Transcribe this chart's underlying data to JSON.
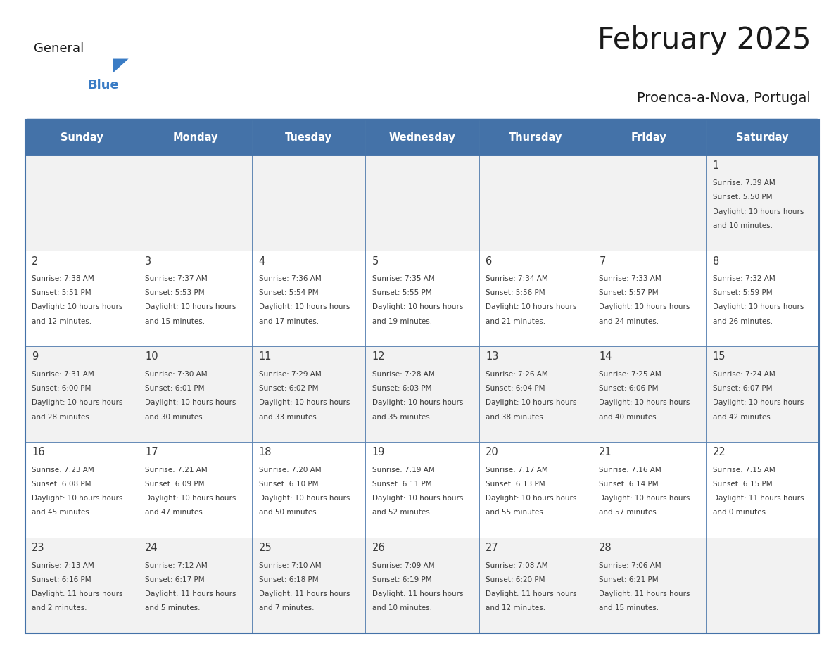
{
  "title": "February 2025",
  "subtitle": "Proenca-a-Nova, Portugal",
  "header_bg": "#4472A8",
  "header_text_color": "#FFFFFF",
  "cell_bg_odd": "#F2F2F2",
  "cell_bg_even": "#FFFFFF",
  "border_color": "#4472A8",
  "day_headers": [
    "Sunday",
    "Monday",
    "Tuesday",
    "Wednesday",
    "Thursday",
    "Friday",
    "Saturday"
  ],
  "title_color": "#1a1a1a",
  "subtitle_color": "#1a1a1a",
  "day_num_color": "#3a3a3a",
  "cell_text_color": "#3a3a3a",
  "logo_general_color": "#1a1a1a",
  "logo_blue_color": "#3a7cc5",
  "calendar_data": [
    [
      null,
      null,
      null,
      null,
      null,
      null,
      {
        "day": 1,
        "sunrise": "7:39 AM",
        "sunset": "5:50 PM",
        "daylight": "10 hours and 10 minutes."
      }
    ],
    [
      {
        "day": 2,
        "sunrise": "7:38 AM",
        "sunset": "5:51 PM",
        "daylight": "10 hours and 12 minutes."
      },
      {
        "day": 3,
        "sunrise": "7:37 AM",
        "sunset": "5:53 PM",
        "daylight": "10 hours and 15 minutes."
      },
      {
        "day": 4,
        "sunrise": "7:36 AM",
        "sunset": "5:54 PM",
        "daylight": "10 hours and 17 minutes."
      },
      {
        "day": 5,
        "sunrise": "7:35 AM",
        "sunset": "5:55 PM",
        "daylight": "10 hours and 19 minutes."
      },
      {
        "day": 6,
        "sunrise": "7:34 AM",
        "sunset": "5:56 PM",
        "daylight": "10 hours and 21 minutes."
      },
      {
        "day": 7,
        "sunrise": "7:33 AM",
        "sunset": "5:57 PM",
        "daylight": "10 hours and 24 minutes."
      },
      {
        "day": 8,
        "sunrise": "7:32 AM",
        "sunset": "5:59 PM",
        "daylight": "10 hours and 26 minutes."
      }
    ],
    [
      {
        "day": 9,
        "sunrise": "7:31 AM",
        "sunset": "6:00 PM",
        "daylight": "10 hours and 28 minutes."
      },
      {
        "day": 10,
        "sunrise": "7:30 AM",
        "sunset": "6:01 PM",
        "daylight": "10 hours and 30 minutes."
      },
      {
        "day": 11,
        "sunrise": "7:29 AM",
        "sunset": "6:02 PM",
        "daylight": "10 hours and 33 minutes."
      },
      {
        "day": 12,
        "sunrise": "7:28 AM",
        "sunset": "6:03 PM",
        "daylight": "10 hours and 35 minutes."
      },
      {
        "day": 13,
        "sunrise": "7:26 AM",
        "sunset": "6:04 PM",
        "daylight": "10 hours and 38 minutes."
      },
      {
        "day": 14,
        "sunrise": "7:25 AM",
        "sunset": "6:06 PM",
        "daylight": "10 hours and 40 minutes."
      },
      {
        "day": 15,
        "sunrise": "7:24 AM",
        "sunset": "6:07 PM",
        "daylight": "10 hours and 42 minutes."
      }
    ],
    [
      {
        "day": 16,
        "sunrise": "7:23 AM",
        "sunset": "6:08 PM",
        "daylight": "10 hours and 45 minutes."
      },
      {
        "day": 17,
        "sunrise": "7:21 AM",
        "sunset": "6:09 PM",
        "daylight": "10 hours and 47 minutes."
      },
      {
        "day": 18,
        "sunrise": "7:20 AM",
        "sunset": "6:10 PM",
        "daylight": "10 hours and 50 minutes."
      },
      {
        "day": 19,
        "sunrise": "7:19 AM",
        "sunset": "6:11 PM",
        "daylight": "10 hours and 52 minutes."
      },
      {
        "day": 20,
        "sunrise": "7:17 AM",
        "sunset": "6:13 PM",
        "daylight": "10 hours and 55 minutes."
      },
      {
        "day": 21,
        "sunrise": "7:16 AM",
        "sunset": "6:14 PM",
        "daylight": "10 hours and 57 minutes."
      },
      {
        "day": 22,
        "sunrise": "7:15 AM",
        "sunset": "6:15 PM",
        "daylight": "11 hours and 0 minutes."
      }
    ],
    [
      {
        "day": 23,
        "sunrise": "7:13 AM",
        "sunset": "6:16 PM",
        "daylight": "11 hours and 2 minutes."
      },
      {
        "day": 24,
        "sunrise": "7:12 AM",
        "sunset": "6:17 PM",
        "daylight": "11 hours and 5 minutes."
      },
      {
        "day": 25,
        "sunrise": "7:10 AM",
        "sunset": "6:18 PM",
        "daylight": "11 hours and 7 minutes."
      },
      {
        "day": 26,
        "sunrise": "7:09 AM",
        "sunset": "6:19 PM",
        "daylight": "11 hours and 10 minutes."
      },
      {
        "day": 27,
        "sunrise": "7:08 AM",
        "sunset": "6:20 PM",
        "daylight": "11 hours and 12 minutes."
      },
      {
        "day": 28,
        "sunrise": "7:06 AM",
        "sunset": "6:21 PM",
        "daylight": "11 hours and 15 minutes."
      },
      null
    ]
  ]
}
